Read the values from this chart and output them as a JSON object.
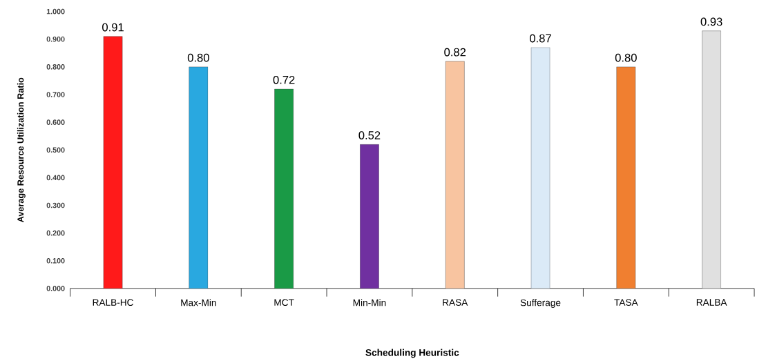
{
  "chart_data": {
    "type": "bar",
    "xlabel": "Scheduling Heuristic",
    "ylabel": "Average Resource Utilization Ratio",
    "categories": [
      "RALB-HC",
      "Max-Min",
      "MCT",
      "Min-Min",
      "RASA",
      "Sufferage",
      "TASA",
      "RALBA"
    ],
    "values": [
      0.91,
      0.8,
      0.72,
      0.52,
      0.82,
      0.87,
      0.8,
      0.93
    ],
    "value_labels": [
      "0.91",
      "0.80",
      "0.72",
      "0.52",
      "0.82",
      "0.87",
      "0.80",
      "0.93"
    ],
    "colors": [
      "#ff1a1a",
      "#29a8e0",
      "#1a9a46",
      "#7030a0",
      "#f8c4a0",
      "#dbeaf7",
      "#f07f30",
      "#e0e0e0"
    ],
    "ylim": [
      0,
      1
    ],
    "yticks": [
      {
        "value": 0,
        "label": "0.000"
      },
      {
        "value": 0.1,
        "label": "0.100"
      },
      {
        "value": 0.2,
        "label": "0.200"
      },
      {
        "value": 0.3,
        "label": "0.300"
      },
      {
        "value": 0.4,
        "label": "0.400"
      },
      {
        "value": 0.5,
        "label": "0.500"
      },
      {
        "value": 0.6,
        "label": "0.600"
      },
      {
        "value": 0.7,
        "label": "0.700"
      },
      {
        "value": 0.8,
        "label": "0.800"
      },
      {
        "value": 0.9,
        "label": "0.900"
      },
      {
        "value": 1,
        "label": "1.000"
      }
    ]
  }
}
